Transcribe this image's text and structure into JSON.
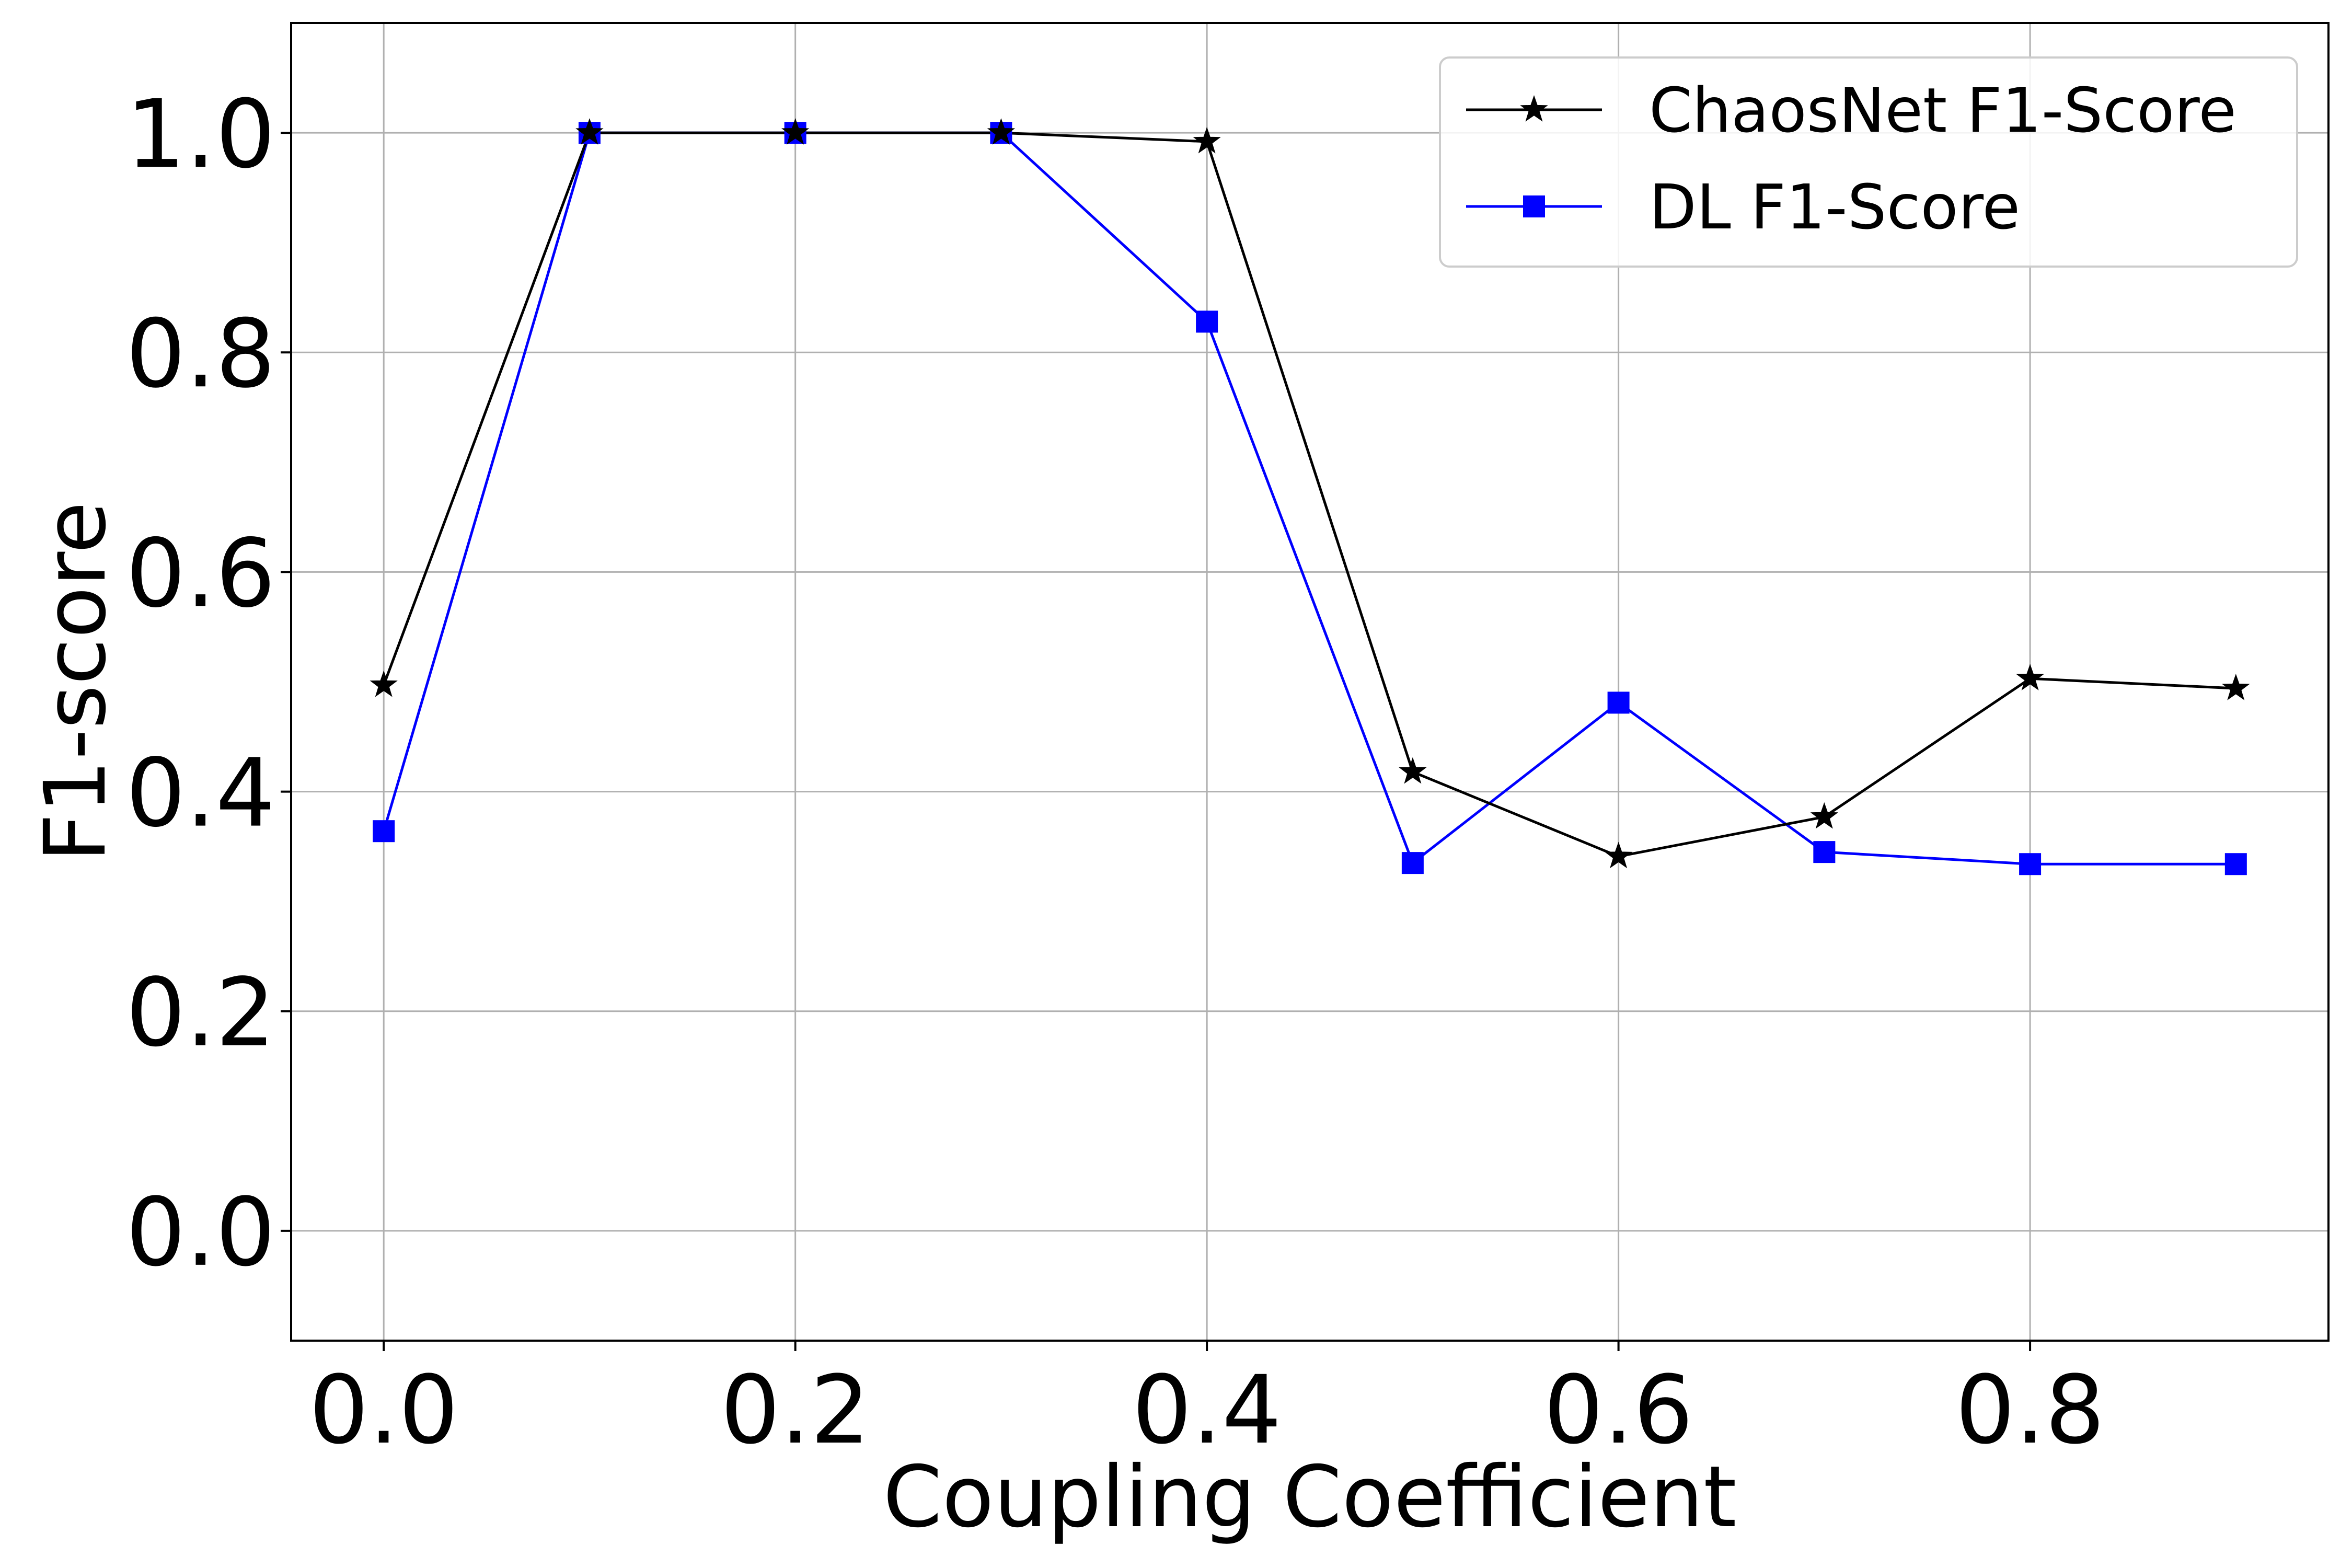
{
  "chart_data": {
    "type": "line",
    "xlabel": "Coupling Coefficient",
    "ylabel": "F1-score",
    "xlim": [
      -0.045,
      0.945
    ],
    "ylim": [
      -0.1,
      1.1
    ],
    "xticks": [
      0.0,
      0.2,
      0.4,
      0.6,
      0.8
    ],
    "xtick_labels": [
      "0.0",
      "0.2",
      "0.4",
      "0.6",
      "0.8"
    ],
    "yticks": [
      0.0,
      0.2,
      0.4,
      0.6,
      0.8,
      1.0
    ],
    "ytick_labels": [
      "0.0",
      "0.2",
      "0.4",
      "0.6",
      "0.8",
      "1.0"
    ],
    "grid": true,
    "legend_position": "top-right",
    "x": [
      0.0,
      0.1,
      0.2,
      0.3,
      0.4,
      0.5,
      0.6,
      0.7,
      0.8,
      0.9
    ],
    "series": [
      {
        "name": "ChaosNet F1-Score",
        "color": "#000000",
        "marker": "star",
        "values": [
          0.497,
          1.0,
          1.0,
          1.0,
          0.992,
          0.418,
          0.341,
          0.377,
          0.503,
          0.494
        ]
      },
      {
        "name": "DL F1-Score",
        "color": "#0000ff",
        "marker": "square",
        "values": [
          0.364,
          1.0,
          1.0,
          1.0,
          0.828,
          0.335,
          0.481,
          0.345,
          0.334,
          0.334
        ]
      }
    ]
  }
}
